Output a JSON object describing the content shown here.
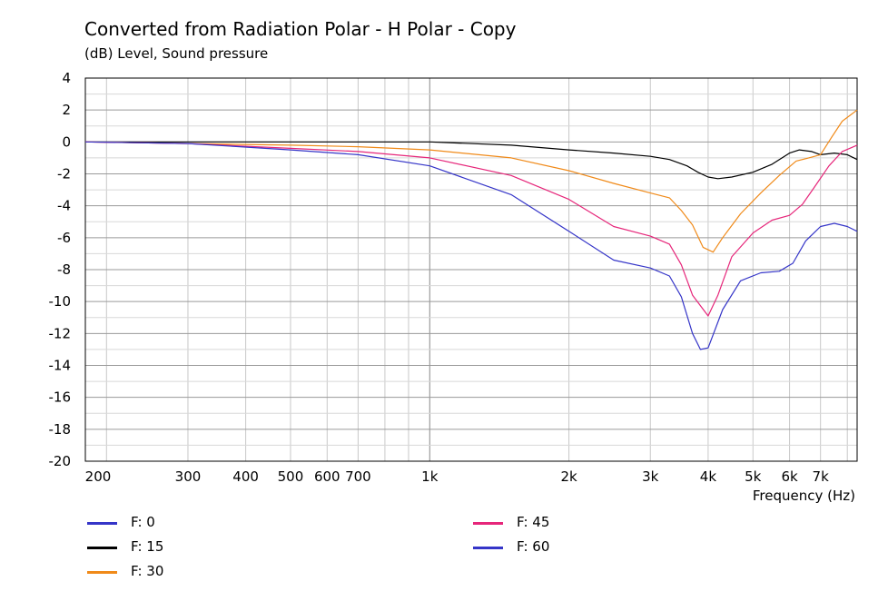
{
  "chart_data": {
    "type": "line",
    "title": "Converted from Radiation Polar - H Polar - Copy",
    "ylabel": "(dB)  Level, Sound pressure",
    "xlabel": "Frequency  (Hz)",
    "x_scale": "log",
    "xlim": [
      180,
      8400
    ],
    "ylim": [
      -20,
      4
    ],
    "yticks": [
      4,
      2,
      0,
      -2,
      -4,
      -6,
      -8,
      -10,
      -12,
      -14,
      -16,
      -18,
      -20
    ],
    "xtick_labels": [
      {
        "value": 200,
        "label": "200"
      },
      {
        "value": 300,
        "label": "300"
      },
      {
        "value": 400,
        "label": "400"
      },
      {
        "value": 500,
        "label": "500"
      },
      {
        "value": 600,
        "label": "600"
      },
      {
        "value": 700,
        "label": "700"
      },
      {
        "value": 1000,
        "label": "1k"
      },
      {
        "value": 2000,
        "label": "2k"
      },
      {
        "value": 3000,
        "label": "3k"
      },
      {
        "value": 4000,
        "label": "4k"
      },
      {
        "value": 5000,
        "label": "5k"
      },
      {
        "value": 6000,
        "label": "6k"
      },
      {
        "value": 7000,
        "label": "7k"
      }
    ],
    "grid": true,
    "legend_position": "bottom",
    "series": [
      {
        "name": "F: 0",
        "color": "#3535c8",
        "points": []
      },
      {
        "name": "F: 15",
        "color": "#000000",
        "points": [
          [
            180,
            0
          ],
          [
            300,
            0
          ],
          [
            500,
            0
          ],
          [
            700,
            0
          ],
          [
            1000,
            0
          ],
          [
            1500,
            -0.2
          ],
          [
            2000,
            -0.5
          ],
          [
            2500,
            -0.7
          ],
          [
            3000,
            -0.9
          ],
          [
            3300,
            -1.1
          ],
          [
            3600,
            -1.5
          ],
          [
            3800,
            -1.9
          ],
          [
            4000,
            -2.2
          ],
          [
            4200,
            -2.3
          ],
          [
            4500,
            -2.2
          ],
          [
            5000,
            -1.9
          ],
          [
            5500,
            -1.4
          ],
          [
            6000,
            -0.7
          ],
          [
            6300,
            -0.5
          ],
          [
            6700,
            -0.6
          ],
          [
            7000,
            -0.8
          ],
          [
            7500,
            -0.7
          ],
          [
            8000,
            -0.8
          ],
          [
            8400,
            -1.1
          ]
        ]
      },
      {
        "name": "F: 30",
        "color": "#f08a19",
        "points": [
          [
            180,
            0
          ],
          [
            300,
            -0.1
          ],
          [
            500,
            -0.2
          ],
          [
            700,
            -0.3
          ],
          [
            1000,
            -0.5
          ],
          [
            1500,
            -1.0
          ],
          [
            2000,
            -1.8
          ],
          [
            2500,
            -2.6
          ],
          [
            3000,
            -3.2
          ],
          [
            3300,
            -3.5
          ],
          [
            3500,
            -4.3
          ],
          [
            3700,
            -5.2
          ],
          [
            3900,
            -6.6
          ],
          [
            4100,
            -6.9
          ],
          [
            4300,
            -6.0
          ],
          [
            4700,
            -4.5
          ],
          [
            5200,
            -3.2
          ],
          [
            5700,
            -2.1
          ],
          [
            6200,
            -1.2
          ],
          [
            6600,
            -1.0
          ],
          [
            7000,
            -0.8
          ],
          [
            7400,
            0.3
          ],
          [
            7800,
            1.3
          ],
          [
            8400,
            2.0
          ]
        ]
      },
      {
        "name": "F: 45",
        "color": "#e6267a",
        "points": [
          [
            180,
            0
          ],
          [
            300,
            -0.1
          ],
          [
            500,
            -0.4
          ],
          [
            700,
            -0.6
          ],
          [
            1000,
            -1.0
          ],
          [
            1500,
            -2.1
          ],
          [
            2000,
            -3.6
          ],
          [
            2500,
            -5.3
          ],
          [
            3000,
            -5.9
          ],
          [
            3300,
            -6.4
          ],
          [
            3500,
            -7.7
          ],
          [
            3700,
            -9.6
          ],
          [
            4000,
            -10.9
          ],
          [
            4200,
            -9.6
          ],
          [
            4500,
            -7.2
          ],
          [
            5000,
            -5.7
          ],
          [
            5500,
            -4.9
          ],
          [
            6000,
            -4.6
          ],
          [
            6400,
            -3.9
          ],
          [
            6800,
            -2.8
          ],
          [
            7300,
            -1.5
          ],
          [
            7800,
            -0.6
          ],
          [
            8400,
            -0.2
          ]
        ]
      },
      {
        "name": "F: 60",
        "color": "#3535c8",
        "points": [
          [
            180,
            0
          ],
          [
            300,
            -0.1
          ],
          [
            500,
            -0.5
          ],
          [
            700,
            -0.8
          ],
          [
            1000,
            -1.5
          ],
          [
            1500,
            -3.3
          ],
          [
            2000,
            -5.6
          ],
          [
            2500,
            -7.4
          ],
          [
            3000,
            -7.9
          ],
          [
            3300,
            -8.4
          ],
          [
            3500,
            -9.7
          ],
          [
            3700,
            -12.0
          ],
          [
            3850,
            -13.0
          ],
          [
            4000,
            -12.9
          ],
          [
            4300,
            -10.5
          ],
          [
            4700,
            -8.7
          ],
          [
            5200,
            -8.2
          ],
          [
            5700,
            -8.1
          ],
          [
            6100,
            -7.6
          ],
          [
            6500,
            -6.2
          ],
          [
            7000,
            -5.3
          ],
          [
            7500,
            -5.1
          ],
          [
            8000,
            -5.3
          ],
          [
            8400,
            -5.6
          ]
        ]
      }
    ]
  }
}
